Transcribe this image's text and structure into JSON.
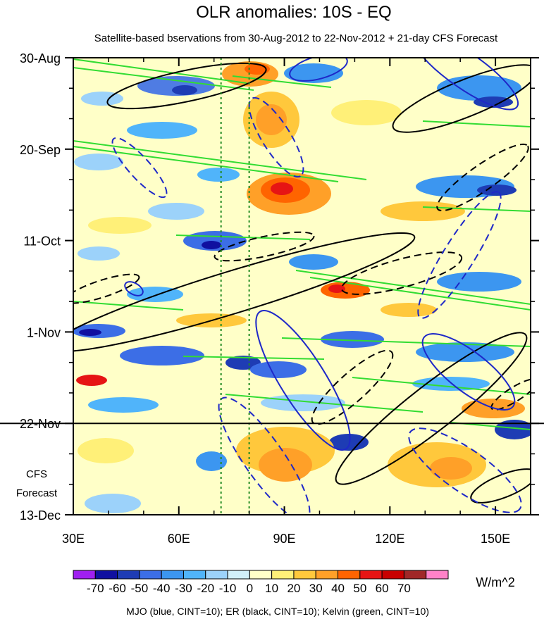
{
  "chart_data": {
    "type": "heatmap",
    "title": "OLR anomalies: 10S - EQ",
    "subtitle": "Satellite-based bservations from 30-Aug-2012 to 22-Nov-2012 + 21-day CFS Forecast",
    "x_axis": {
      "range": [
        30,
        160
      ],
      "ticks": [
        30,
        60,
        90,
        120,
        150
      ],
      "tick_labels": [
        "30E",
        "60E",
        "90E",
        "120E",
        "150E"
      ]
    },
    "y_axis": {
      "range_days": [
        0,
        105
      ],
      "ticks": [
        0,
        21,
        42,
        63,
        84,
        105
      ],
      "tick_labels": [
        "30-Aug",
        "20-Sep",
        "11-Oct",
        "1-Nov",
        "22-Nov",
        "13-Dec"
      ],
      "direction": "time increases downward"
    },
    "observation_end_day": 84,
    "observation_end_label": "22-Nov",
    "forecast_labels": [
      "CFS",
      "Forecast"
    ],
    "reference_longitudes": [
      72,
      80
    ],
    "colorbar": {
      "units": "W/m^2",
      "levels": [
        -70,
        -60,
        -50,
        -40,
        -30,
        -20,
        -10,
        0,
        10,
        20,
        30,
        40,
        50,
        60,
        70
      ],
      "level_labels": [
        "-70",
        "-60",
        "-50",
        "-40",
        "-30",
        "-20",
        "-10",
        "0",
        "10",
        "20",
        "30",
        "40",
        "50",
        "60",
        "70"
      ],
      "colors": [
        "#a020f0",
        "#1010a0",
        "#1e3cb4",
        "#3c6ee6",
        "#3c96f0",
        "#50b4fa",
        "#9cd2fa",
        "#d2f0fa",
        "#ffffc8",
        "#fff078",
        "#ffc83c",
        "#ffa028",
        "#ff6400",
        "#e61414",
        "#c80000",
        "#a02828",
        "#ff82c8"
      ]
    },
    "contours": {
      "mjo_color": "#1e28c8",
      "er_color": "#000000",
      "kelvin_color": "#32dc32",
      "legend": "MJO (blue, CINT=10); ER (black, CINT=10); Kelvin (green, CINT=10)"
    }
  }
}
